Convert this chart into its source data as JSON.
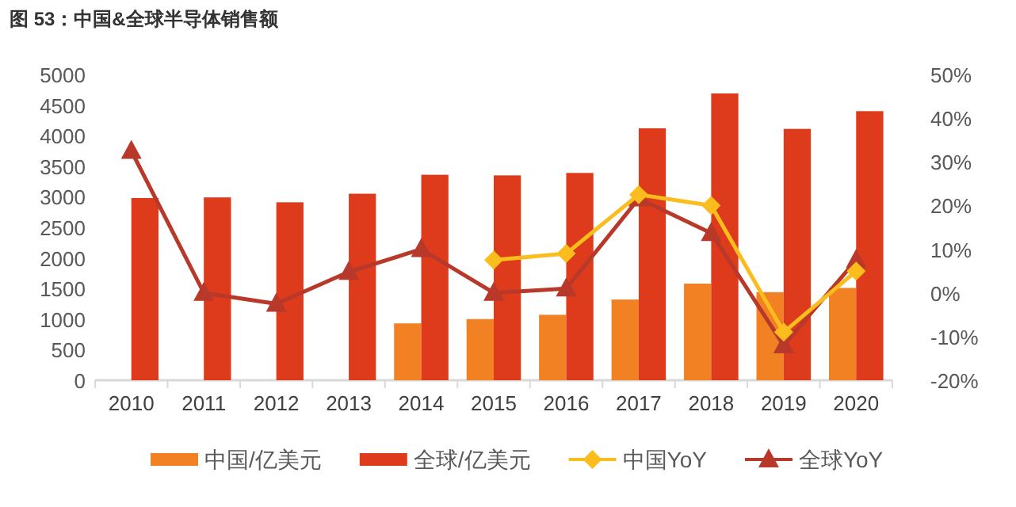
{
  "chart_data": {
    "type": "bar",
    "title": "图 53：中国&全球半导体销售额",
    "categories": [
      "2010",
      "2011",
      "2012",
      "2013",
      "2014",
      "2015",
      "2016",
      "2017",
      "2018",
      "2019",
      "2020"
    ],
    "series": [
      {
        "name": "中国/亿美元",
        "color": "#f28124",
        "values": [
          null,
          null,
          null,
          null,
          930,
          1000,
          1070,
          1320,
          1580,
          1440,
          1510
        ]
      },
      {
        "name": "全球/亿美元",
        "color": "#dd3b1b",
        "values": [
          2980,
          2990,
          2910,
          3050,
          3360,
          3350,
          3390,
          4120,
          4690,
          4110,
          4400
        ]
      },
      {
        "name": "中国YoY",
        "type": "line",
        "axis": "y2",
        "marker": "diamond",
        "color": "#fbbd1d",
        "values": [
          null,
          null,
          null,
          null,
          null,
          7.5,
          9,
          22.5,
          20,
          -9,
          5
        ]
      },
      {
        "name": "全球YoY",
        "type": "line",
        "axis": "y2",
        "marker": "triangle",
        "color": "#b8392a",
        "values": [
          32.5,
          0,
          -2.5,
          4.8,
          10,
          0,
          1,
          21.6,
          13.7,
          -12,
          7.5
        ]
      }
    ],
    "ylim": [
      0,
      5000
    ],
    "yticks": [
      0,
      500,
      1000,
      1500,
      2000,
      2500,
      3000,
      3500,
      4000,
      4500,
      5000
    ],
    "y2lim": [
      -20,
      50
    ],
    "y2ticks": [
      {
        "value": -20,
        "label": "-20%"
      },
      {
        "value": -10,
        "label": "-10%"
      },
      {
        "value": 0,
        "label": "0%"
      },
      {
        "value": 10,
        "label": "10%"
      },
      {
        "value": 20,
        "label": "20%"
      },
      {
        "value": 30,
        "label": "30%"
      },
      {
        "value": 40,
        "label": "40%"
      },
      {
        "value": 50,
        "label": "50%"
      }
    ],
    "grid": false,
    "legend": "bottom"
  }
}
